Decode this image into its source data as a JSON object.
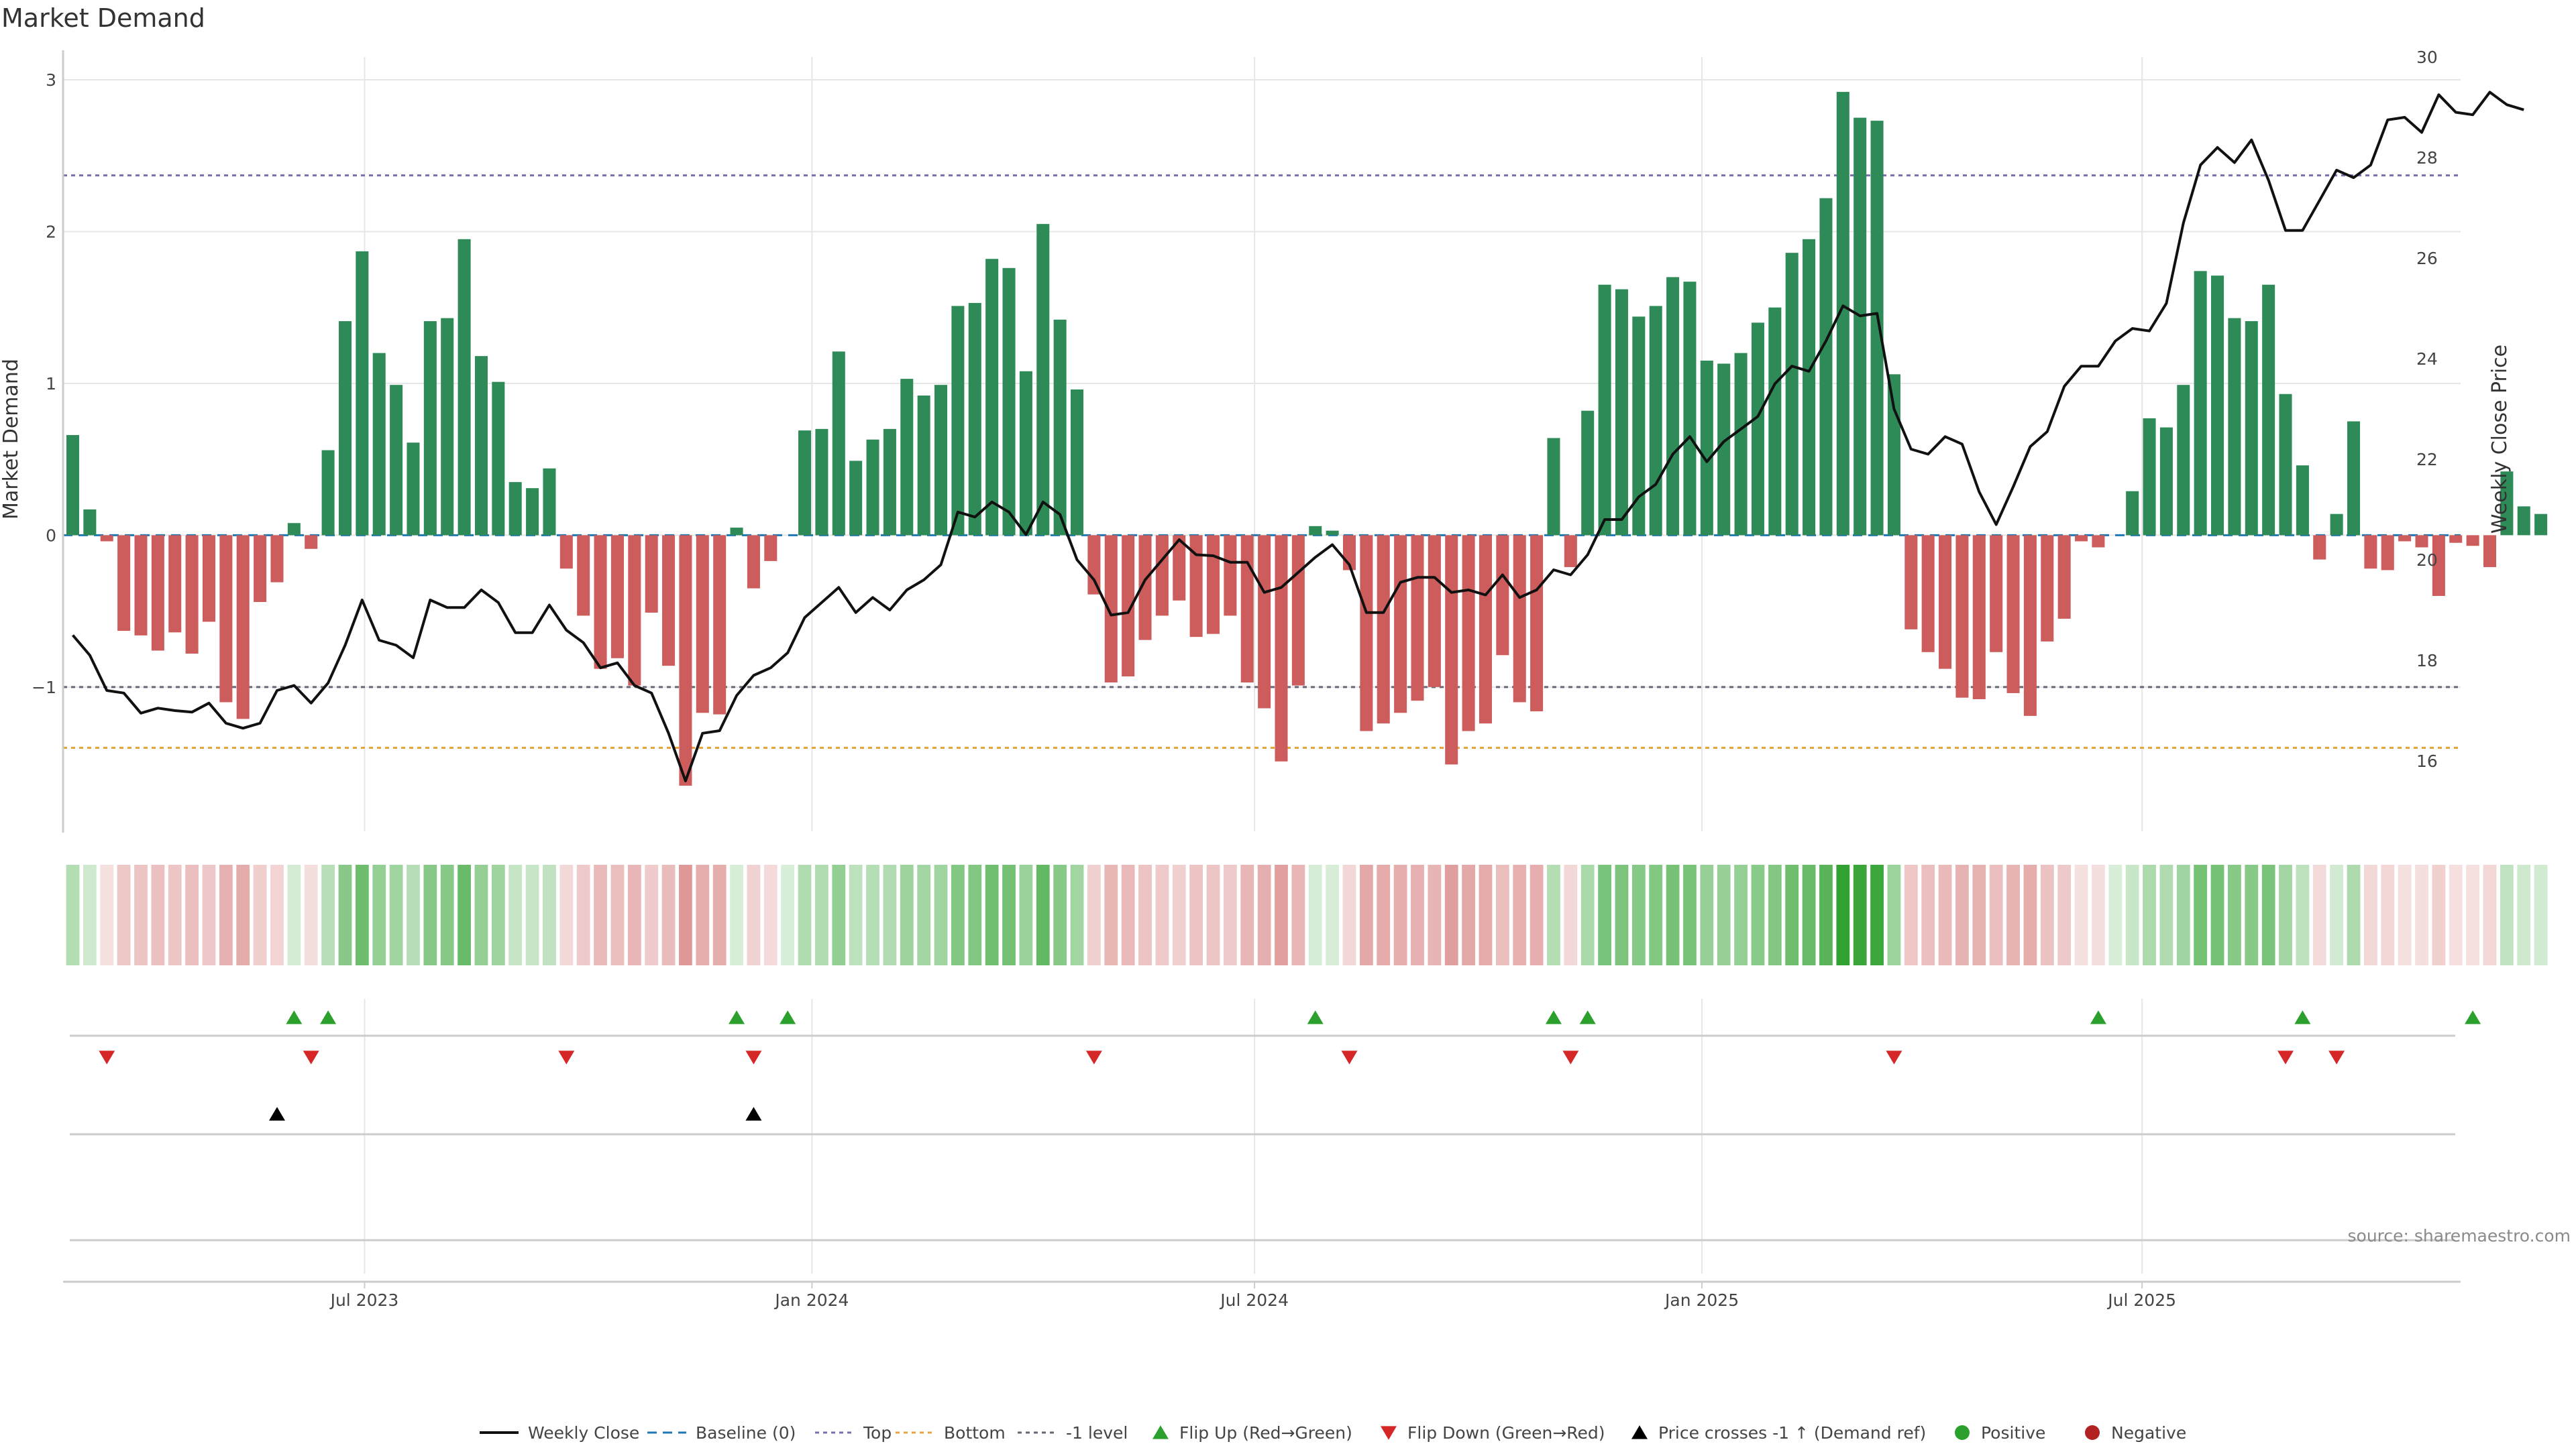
{
  "chart_data": {
    "type": "bar",
    "title": "Market Demand",
    "ylabel": "Market Demand",
    "y2label": "Weekly Close Price",
    "ylim": [
      -1.95,
      3.15
    ],
    "y2lim": [
      14.6,
      30.0
    ],
    "yticks": [
      -1,
      0,
      1,
      2,
      3
    ],
    "y2ticks": [
      16,
      18,
      20,
      22,
      24,
      26,
      28,
      30
    ],
    "xlim": [
      "2023-02-27",
      "2025-11-09"
    ],
    "xticks": [
      {
        "label": "Jul 2023",
        "date": "2023-07-01"
      },
      {
        "label": "Jan 2024",
        "date": "2024-01-01"
      },
      {
        "label": "Jul 2024",
        "date": "2024-07-01"
      },
      {
        "label": "Jan 2025",
        "date": "2025-01-01"
      },
      {
        "label": "Jul 2025",
        "date": "2025-07-01"
      }
    ],
    "start_date": "2023-03-03",
    "week_days": 7,
    "reference_lines": {
      "top": 2.37,
      "bottom": -1.4,
      "minus_one": -1.0,
      "baseline": 0
    },
    "colors": {
      "positive": "#2e8b57",
      "negative": "#cd5c5c",
      "price": "#111111",
      "top": "#7b6fb0",
      "bottom": "#e8a33c",
      "minus_one": "#666677",
      "baseline": "#1f77b4",
      "flip_up": "#2ca02c",
      "flip_down": "#d62728",
      "cross": "#000000",
      "dot_positive": "#2ca02c",
      "dot_negative": "#b22222",
      "grid": "#e6e6e6",
      "axis": "#cccccc"
    },
    "demand": [
      0.66,
      0.17,
      -0.04,
      -0.63,
      -0.66,
      -0.76,
      -0.64,
      -0.78,
      -0.57,
      -1.1,
      -1.21,
      -0.44,
      -0.31,
      0.08,
      -0.09,
      0.56,
      1.41,
      1.87,
      1.2,
      0.99,
      0.61,
      1.41,
      1.43,
      1.95,
      1.18,
      1.01,
      0.35,
      0.31,
      0.44,
      -0.22,
      -0.53,
      -0.88,
      -0.81,
      -0.99,
      -0.51,
      -0.86,
      -1.65,
      -1.17,
      -1.18,
      0.05,
      -0.35,
      -0.17,
      0,
      0.69,
      0.7,
      1.21,
      0.49,
      0.63,
      0.7,
      1.03,
      0.92,
      0.99,
      1.51,
      1.53,
      1.82,
      1.76,
      1.08,
      2.05,
      1.42,
      0.96,
      -0.39,
      -0.97,
      -0.93,
      -0.69,
      -0.53,
      -0.43,
      -0.67,
      -0.65,
      -0.53,
      -0.97,
      -1.14,
      -1.49,
      -0.99,
      0.06,
      0.03,
      -0.23,
      -1.29,
      -1.24,
      -1.17,
      -1.09,
      -1.0,
      -1.51,
      -1.29,
      -1.24,
      -0.79,
      -1.1,
      -1.16,
      0.64,
      -0.21,
      0.82,
      1.65,
      1.62,
      1.44,
      1.51,
      1.7,
      1.67,
      1.15,
      1.13,
      1.2,
      1.4,
      1.5,
      1.86,
      1.95,
      2.22,
      2.92,
      2.75,
      2.73,
      1.06,
      -0.62,
      -0.77,
      -0.88,
      -1.07,
      -1.08,
      -0.77,
      -1.04,
      -1.19,
      -0.7,
      -0.55,
      -0.04,
      -0.08,
      0,
      0.29,
      0.77,
      0.71,
      0.99,
      1.74,
      1.71,
      1.43,
      1.41,
      1.65,
      0.93,
      0.46,
      -0.16,
      0.14,
      0.75,
      -0.22,
      -0.23,
      -0.04,
      -0.08,
      -0.4,
      -0.05,
      -0.07,
      -0.21,
      0.42,
      0.19,
      0.14
    ],
    "price": [
      18.5,
      18.1,
      17.4,
      17.35,
      16.95,
      17.05,
      17.0,
      16.97,
      17.15,
      16.75,
      16.65,
      16.75,
      17.4,
      17.5,
      17.15,
      17.55,
      18.3,
      19.2,
      18.4,
      18.3,
      18.05,
      19.2,
      19.05,
      19.05,
      19.4,
      19.15,
      18.55,
      18.55,
      19.1,
      18.6,
      18.35,
      17.85,
      17.95,
      17.5,
      17.35,
      16.55,
      15.6,
      16.55,
      16.6,
      17.3,
      17.7,
      17.85,
      18.15,
      18.85,
      19.15,
      19.45,
      18.95,
      19.25,
      19.0,
      19.4,
      19.6,
      19.9,
      20.95,
      20.85,
      21.15,
      20.95,
      20.5,
      21.15,
      20.9,
      20.0,
      19.6,
      18.9,
      18.95,
      19.6,
      20.0,
      20.4,
      20.1,
      20.08,
      19.95,
      19.95,
      19.35,
      19.45,
      19.75,
      20.05,
      20.3,
      19.9,
      18.95,
      18.95,
      19.55,
      19.65,
      19.65,
      19.35,
      19.4,
      19.3,
      19.7,
      19.25,
      19.4,
      19.8,
      19.7,
      20.1,
      20.8,
      20.8,
      21.25,
      21.5,
      22.1,
      22.45,
      21.95,
      22.35,
      22.6,
      22.85,
      23.5,
      23.85,
      23.75,
      24.35,
      25.05,
      24.85,
      24.9,
      23.0,
      22.2,
      22.1,
      22.45,
      22.3,
      21.35,
      20.7,
      21.45,
      22.25,
      22.55,
      23.45,
      23.85,
      23.85,
      24.35,
      24.6,
      24.55,
      25.1,
      26.7,
      27.85,
      28.2,
      27.9,
      28.35,
      27.55,
      26.55,
      26.55,
      27.15,
      27.75,
      27.6,
      27.85,
      28.75,
      28.8,
      28.5,
      29.25,
      28.9,
      28.85,
      29.3,
      29.05,
      28.95
    ],
    "signals": {
      "flip_up": [
        13,
        15,
        39,
        42,
        73,
        87,
        89,
        119,
        131,
        141
      ],
      "flip_down": [
        2,
        14,
        29,
        40,
        60,
        75,
        88,
        107,
        130,
        133
      ],
      "price_cross_up": [
        12,
        40
      ],
      "positive_dots": [],
      "negative_dots": []
    },
    "legend": [
      {
        "key": "weekly_close",
        "label": "Weekly Close"
      },
      {
        "key": "baseline",
        "label": "Baseline (0)"
      },
      {
        "key": "top",
        "label": "Top"
      },
      {
        "key": "bottom",
        "label": "Bottom"
      },
      {
        "key": "minus_one",
        "label": "-1 level"
      },
      {
        "key": "flip_up",
        "label": "Flip Up (Red→Green)"
      },
      {
        "key": "flip_down",
        "label": "Flip Down (Green→Red)"
      },
      {
        "key": "price_cross",
        "label": "Price crosses -1 ↑ (Demand ref)"
      },
      {
        "key": "positive",
        "label": "Positive"
      },
      {
        "key": "negative",
        "label": "Negative"
      }
    ],
    "source": "source: sharemaestro.com"
  }
}
